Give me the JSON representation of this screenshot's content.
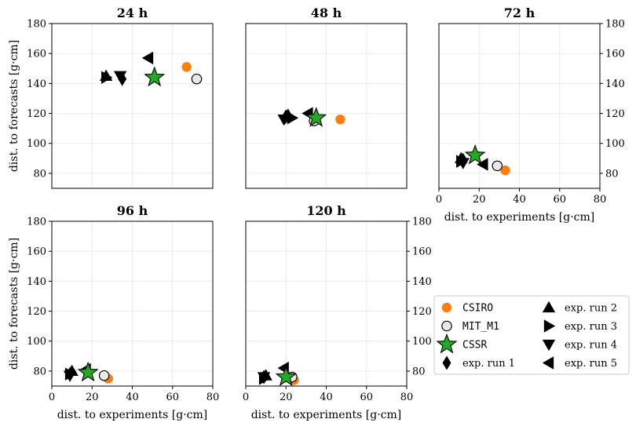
{
  "chart_data": [
    {
      "type": "scatter",
      "title": "24 h",
      "xlabel": "",
      "ylabel": "dist. to forecasts [g·cm]",
      "xlim": [
        0,
        80
      ],
      "ylim": [
        70,
        180
      ],
      "show_x_ticks": false,
      "y_ticks_side": "left",
      "points": [
        {
          "series": "CSIRO",
          "x": 67,
          "y": 151
        },
        {
          "series": "MIT_M1",
          "x": 72,
          "y": 143
        },
        {
          "series": "CSSR",
          "x": 51,
          "y": 144
        },
        {
          "series": "exp. run 1",
          "x": 35,
          "y": 143
        },
        {
          "series": "exp. run 2",
          "x": 27,
          "y": 145
        },
        {
          "series": "exp. run 3",
          "x": 27,
          "y": 144
        },
        {
          "series": "exp. run 4",
          "x": 34,
          "y": 145
        },
        {
          "series": "exp. run 5",
          "x": 48,
          "y": 157
        }
      ]
    },
    {
      "type": "scatter",
      "title": "48 h",
      "xlabel": "",
      "ylabel": "",
      "xlim": [
        0,
        80
      ],
      "ylim": [
        70,
        180
      ],
      "show_x_ticks": false,
      "y_ticks_side": "none",
      "points": [
        {
          "series": "CSIRO",
          "x": 47,
          "y": 116
        },
        {
          "series": "MIT_M1",
          "x": 34,
          "y": 115
        },
        {
          "series": "CSSR",
          "x": 35,
          "y": 117
        },
        {
          "series": "exp. run 1",
          "x": 20,
          "y": 118
        },
        {
          "series": "exp. run 2",
          "x": 21,
          "y": 119
        },
        {
          "series": "exp. run 3",
          "x": 23,
          "y": 117
        },
        {
          "series": "exp. run 4",
          "x": 19,
          "y": 116
        },
        {
          "series": "exp. run 5",
          "x": 31,
          "y": 120
        }
      ]
    },
    {
      "type": "scatter",
      "title": "72 h",
      "xlabel": "dist. to experiments [g·cm]",
      "ylabel": "",
      "xlim": [
        0,
        80
      ],
      "ylim": [
        70,
        180
      ],
      "show_x_ticks": true,
      "y_ticks_side": "right",
      "points": [
        {
          "series": "CSIRO",
          "x": 33,
          "y": 82
        },
        {
          "series": "MIT_M1",
          "x": 29,
          "y": 85
        },
        {
          "series": "CSSR",
          "x": 18,
          "y": 92
        },
        {
          "series": "exp. run 1",
          "x": 12,
          "y": 89
        },
        {
          "series": "exp. run 2",
          "x": 11,
          "y": 90
        },
        {
          "series": "exp. run 3",
          "x": 11,
          "y": 88
        },
        {
          "series": "exp. run 4",
          "x": 12,
          "y": 87
        },
        {
          "series": "exp. run 5",
          "x": 22,
          "y": 86
        }
      ]
    },
    {
      "type": "scatter",
      "title": "96 h",
      "xlabel": "dist. to experiments [g·cm]",
      "ylabel": "dist. to forecasts [g·cm]",
      "xlim": [
        0,
        80
      ],
      "ylim": [
        70,
        180
      ],
      "show_x_ticks": true,
      "y_ticks_side": "left",
      "points": [
        {
          "series": "CSIRO",
          "x": 28,
          "y": 75
        },
        {
          "series": "MIT_M1",
          "x": 26,
          "y": 77
        },
        {
          "series": "CSSR",
          "x": 18,
          "y": 79
        },
        {
          "series": "exp. run 1",
          "x": 9,
          "y": 78
        },
        {
          "series": "exp. run 2",
          "x": 10,
          "y": 80
        },
        {
          "series": "exp. run 3",
          "x": 9,
          "y": 78
        },
        {
          "series": "exp. run 4",
          "x": 9,
          "y": 77
        },
        {
          "series": "exp. run 5",
          "x": 17,
          "y": 81
        }
      ]
    },
    {
      "type": "scatter",
      "title": "120 h",
      "xlabel": "dist. to experiments [g·cm]",
      "ylabel": "",
      "xlim": [
        0,
        80
      ],
      "ylim": [
        70,
        180
      ],
      "show_x_ticks": true,
      "y_ticks_side": "right",
      "points": [
        {
          "series": "CSIRO",
          "x": 24,
          "y": 74
        },
        {
          "series": "MIT_M1",
          "x": 23,
          "y": 76
        },
        {
          "series": "CSSR",
          "x": 20,
          "y": 76
        },
        {
          "series": "exp. run 1",
          "x": 9,
          "y": 76
        },
        {
          "series": "exp. run 2",
          "x": 10,
          "y": 77
        },
        {
          "series": "exp. run 3",
          "x": 9,
          "y": 75
        },
        {
          "series": "exp. run 4",
          "x": 9,
          "y": 76
        },
        {
          "series": "exp. run 5",
          "x": 19,
          "y": 82
        }
      ]
    }
  ],
  "x_ticks": [
    0,
    20,
    40,
    60,
    80
  ],
  "y_ticks": [
    80,
    100,
    120,
    140,
    160,
    180
  ],
  "grid": true,
  "legend": {
    "placement": "bottom-right",
    "columns": 2,
    "entries": [
      {
        "label": "CSIRO",
        "marker": "circle",
        "color": "#ff7f0e",
        "edge": "none",
        "font": "mono"
      },
      {
        "label": "MIT_M1",
        "marker": "circle",
        "color": "#e8e8e8",
        "edge": "#000000",
        "font": "mono"
      },
      {
        "label": "CSSR",
        "marker": "star",
        "color": "#22aa22",
        "edge": "#000000",
        "font": "mono"
      },
      {
        "label": "exp. run 1",
        "marker": "diamond",
        "color": "#000000",
        "edge": "none",
        "font": "serif"
      },
      {
        "label": "exp. run 2",
        "marker": "triangle-up",
        "color": "#000000",
        "edge": "none",
        "font": "serif"
      },
      {
        "label": "exp. run 3",
        "marker": "triangle-right",
        "color": "#000000",
        "edge": "none",
        "font": "serif"
      },
      {
        "label": "exp. run 4",
        "marker": "triangle-down",
        "color": "#000000",
        "edge": "none",
        "font": "serif"
      },
      {
        "label": "exp. run 5",
        "marker": "triangle-left",
        "color": "#000000",
        "edge": "none",
        "font": "serif"
      }
    ]
  }
}
